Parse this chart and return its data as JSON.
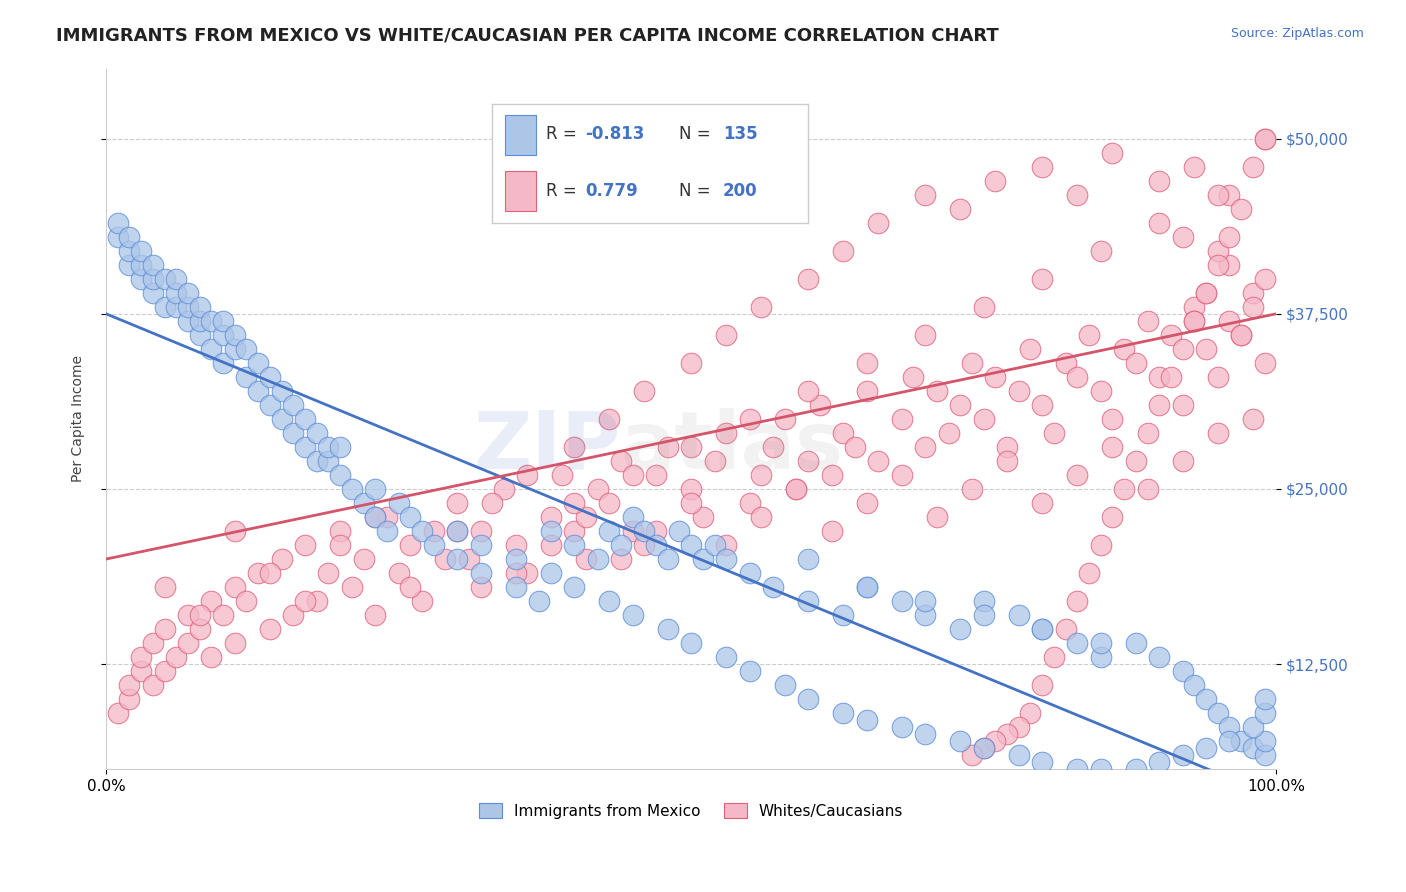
{
  "title": "IMMIGRANTS FROM MEXICO VS WHITE/CAUCASIAN PER CAPITA INCOME CORRELATION CHART",
  "source_text": "Source: ZipAtlas.com",
  "ylabel": "Per Capita Income",
  "xlim": [
    0,
    1
  ],
  "ylim": [
    5000,
    55000
  ],
  "yticks": [
    12500,
    25000,
    37500,
    50000
  ],
  "ytick_labels": [
    "$12,500",
    "$25,000",
    "$37,500",
    "$50,000"
  ],
  "xticks": [
    0,
    1
  ],
  "xtick_labels": [
    "0.0%",
    "100.0%"
  ],
  "blue_color": "#adc6e8",
  "pink_color": "#f5b8c8",
  "blue_edge_color": "#5b8dd9",
  "pink_edge_color": "#e0607a",
  "blue_line_color": "#4472c4",
  "pink_line_color": "#d4546a",
  "legend_R1": "-0.813",
  "legend_N1": "135",
  "legend_R2": "0.779",
  "legend_N2": "200",
  "legend_label1": "Immigrants from Mexico",
  "legend_label2": "Whites/Caucasians",
  "title_fontsize": 13,
  "axis_label_fontsize": 10,
  "tick_fontsize": 11,
  "background_color": "#ffffff",
  "grid_color": "#cccccc",
  "blue_trend": [
    37500,
    3000
  ],
  "pink_trend": [
    20000,
    37500
  ],
  "blue_x": [
    0.01,
    0.01,
    0.02,
    0.02,
    0.02,
    0.03,
    0.03,
    0.03,
    0.04,
    0.04,
    0.04,
    0.05,
    0.05,
    0.06,
    0.06,
    0.06,
    0.07,
    0.07,
    0.07,
    0.08,
    0.08,
    0.08,
    0.09,
    0.09,
    0.1,
    0.1,
    0.1,
    0.11,
    0.11,
    0.12,
    0.12,
    0.13,
    0.13,
    0.14,
    0.14,
    0.15,
    0.15,
    0.16,
    0.16,
    0.17,
    0.17,
    0.18,
    0.18,
    0.19,
    0.19,
    0.2,
    0.2,
    0.21,
    0.22,
    0.23,
    0.23,
    0.24,
    0.25,
    0.26,
    0.27,
    0.28,
    0.3,
    0.32,
    0.35,
    0.37,
    0.38,
    0.4,
    0.42,
    0.43,
    0.44,
    0.45,
    0.46,
    0.47,
    0.48,
    0.49,
    0.5,
    0.51,
    0.52,
    0.53,
    0.55,
    0.57,
    0.6,
    0.63,
    0.65,
    0.68,
    0.7,
    0.73,
    0.75,
    0.78,
    0.8,
    0.83,
    0.85,
    0.88,
    0.9,
    0.92,
    0.93,
    0.94,
    0.95,
    0.96,
    0.97,
    0.98,
    0.99,
    0.99,
    0.6,
    0.65,
    0.7,
    0.75,
    0.8,
    0.85,
    0.3,
    0.32,
    0.35,
    0.38,
    0.4,
    0.43,
    0.45,
    0.48,
    0.5,
    0.53,
    0.55,
    0.58,
    0.6,
    0.63,
    0.65,
    0.68,
    0.7,
    0.73,
    0.75,
    0.78,
    0.8,
    0.83,
    0.85,
    0.88,
    0.9,
    0.92,
    0.94,
    0.96,
    0.98,
    0.99,
    0.99
  ],
  "blue_y": [
    43000,
    44000,
    41000,
    42000,
    43000,
    40000,
    41000,
    42000,
    39000,
    40000,
    41000,
    38000,
    40000,
    38000,
    39000,
    40000,
    37000,
    38000,
    39000,
    36000,
    37000,
    38000,
    35000,
    37000,
    34000,
    36000,
    37000,
    35000,
    36000,
    33000,
    35000,
    32000,
    34000,
    31000,
    33000,
    30000,
    32000,
    29000,
    31000,
    28000,
    30000,
    27000,
    29000,
    27000,
    28000,
    26000,
    28000,
    25000,
    24000,
    23000,
    25000,
    22000,
    24000,
    23000,
    22000,
    21000,
    20000,
    19000,
    18000,
    17000,
    22000,
    21000,
    20000,
    22000,
    21000,
    23000,
    22000,
    21000,
    20000,
    22000,
    21000,
    20000,
    21000,
    20000,
    19000,
    18000,
    17000,
    16000,
    18000,
    17000,
    16000,
    15000,
    17000,
    16000,
    15000,
    14000,
    13000,
    14000,
    13000,
    12000,
    11000,
    10000,
    9000,
    8000,
    7000,
    6500,
    6000,
    7000,
    20000,
    18000,
    17000,
    16000,
    15000,
    14000,
    22000,
    21000,
    20000,
    19000,
    18000,
    17000,
    16000,
    15000,
    14000,
    13000,
    12000,
    11000,
    10000,
    9000,
    8500,
    8000,
    7500,
    7000,
    6500,
    6000,
    5500,
    5000,
    5000,
    5000,
    5500,
    6000,
    6500,
    7000,
    8000,
    9000,
    10000
  ],
  "pink_x": [
    0.01,
    0.02,
    0.02,
    0.03,
    0.03,
    0.04,
    0.04,
    0.05,
    0.05,
    0.06,
    0.07,
    0.07,
    0.08,
    0.09,
    0.09,
    0.1,
    0.11,
    0.11,
    0.12,
    0.13,
    0.14,
    0.15,
    0.16,
    0.17,
    0.18,
    0.19,
    0.2,
    0.21,
    0.22,
    0.23,
    0.24,
    0.25,
    0.26,
    0.27,
    0.28,
    0.3,
    0.31,
    0.32,
    0.34,
    0.35,
    0.36,
    0.38,
    0.39,
    0.4,
    0.41,
    0.42,
    0.43,
    0.44,
    0.45,
    0.46,
    0.47,
    0.48,
    0.5,
    0.51,
    0.52,
    0.53,
    0.55,
    0.56,
    0.57,
    0.58,
    0.59,
    0.6,
    0.61,
    0.62,
    0.63,
    0.64,
    0.65,
    0.66,
    0.68,
    0.69,
    0.7,
    0.71,
    0.72,
    0.73,
    0.74,
    0.75,
    0.76,
    0.77,
    0.78,
    0.79,
    0.8,
    0.81,
    0.82,
    0.83,
    0.84,
    0.85,
    0.86,
    0.87,
    0.88,
    0.89,
    0.9,
    0.91,
    0.92,
    0.93,
    0.94,
    0.95,
    0.96,
    0.97,
    0.98,
    0.99,
    0.99,
    0.98,
    0.97,
    0.96,
    0.95,
    0.94,
    0.93,
    0.92,
    0.3,
    0.33,
    0.36,
    0.4,
    0.43,
    0.46,
    0.5,
    0.53,
    0.56,
    0.6,
    0.63,
    0.66,
    0.7,
    0.73,
    0.76,
    0.8,
    0.83,
    0.86,
    0.9,
    0.93,
    0.96,
    0.99,
    0.05,
    0.08,
    0.11,
    0.14,
    0.17,
    0.2,
    0.23,
    0.26,
    0.29,
    0.32,
    0.35,
    0.38,
    0.41,
    0.44,
    0.47,
    0.5,
    0.53,
    0.56,
    0.59,
    0.62,
    0.65,
    0.68,
    0.71,
    0.74,
    0.77,
    0.8,
    0.83,
    0.86,
    0.89,
    0.92,
    0.95,
    0.98,
    0.4,
    0.45,
    0.5,
    0.55,
    0.6,
    0.65,
    0.7,
    0.75,
    0.8,
    0.85,
    0.9,
    0.95,
    0.98,
    0.99,
    0.97,
    0.96,
    0.95,
    0.94,
    0.93,
    0.92,
    0.91,
    0.9,
    0.89,
    0.88,
    0.87,
    0.86,
    0.85,
    0.84,
    0.83,
    0.82,
    0.81,
    0.8,
    0.79,
    0.78,
    0.77,
    0.76,
    0.75,
    0.74
  ],
  "pink_y": [
    9000,
    10000,
    11000,
    12000,
    13000,
    11000,
    14000,
    12000,
    15000,
    13000,
    16000,
    14000,
    15000,
    17000,
    13000,
    16000,
    18000,
    14000,
    17000,
    19000,
    15000,
    20000,
    16000,
    21000,
    17000,
    19000,
    22000,
    18000,
    20000,
    16000,
    23000,
    19000,
    21000,
    17000,
    22000,
    24000,
    20000,
    18000,
    25000,
    21000,
    19000,
    23000,
    26000,
    22000,
    20000,
    25000,
    24000,
    27000,
    22000,
    21000,
    26000,
    28000,
    25000,
    23000,
    27000,
    29000,
    24000,
    26000,
    28000,
    30000,
    25000,
    27000,
    31000,
    26000,
    29000,
    28000,
    32000,
    27000,
    30000,
    33000,
    28000,
    32000,
    29000,
    31000,
    34000,
    30000,
    33000,
    28000,
    32000,
    35000,
    31000,
    29000,
    34000,
    33000,
    36000,
    32000,
    30000,
    35000,
    34000,
    37000,
    33000,
    36000,
    31000,
    38000,
    35000,
    33000,
    37000,
    36000,
    39000,
    34000,
    40000,
    38000,
    36000,
    41000,
    42000,
    39000,
    37000,
    43000,
    22000,
    24000,
    26000,
    28000,
    30000,
    32000,
    34000,
    36000,
    38000,
    40000,
    42000,
    44000,
    46000,
    45000,
    47000,
    48000,
    46000,
    49000,
    47000,
    48000,
    46000,
    50000,
    18000,
    16000,
    22000,
    19000,
    17000,
    21000,
    23000,
    18000,
    20000,
    22000,
    19000,
    21000,
    23000,
    20000,
    22000,
    24000,
    21000,
    23000,
    25000,
    22000,
    24000,
    26000,
    23000,
    25000,
    27000,
    24000,
    26000,
    28000,
    25000,
    27000,
    29000,
    30000,
    24000,
    26000,
    28000,
    30000,
    32000,
    34000,
    36000,
    38000,
    40000,
    42000,
    44000,
    46000,
    48000,
    50000,
    45000,
    43000,
    41000,
    39000,
    37000,
    35000,
    33000,
    31000,
    29000,
    27000,
    25000,
    23000,
    21000,
    19000,
    17000,
    15000,
    13000,
    11000,
    9000,
    8000,
    7500,
    7000,
    6500,
    6000
  ]
}
